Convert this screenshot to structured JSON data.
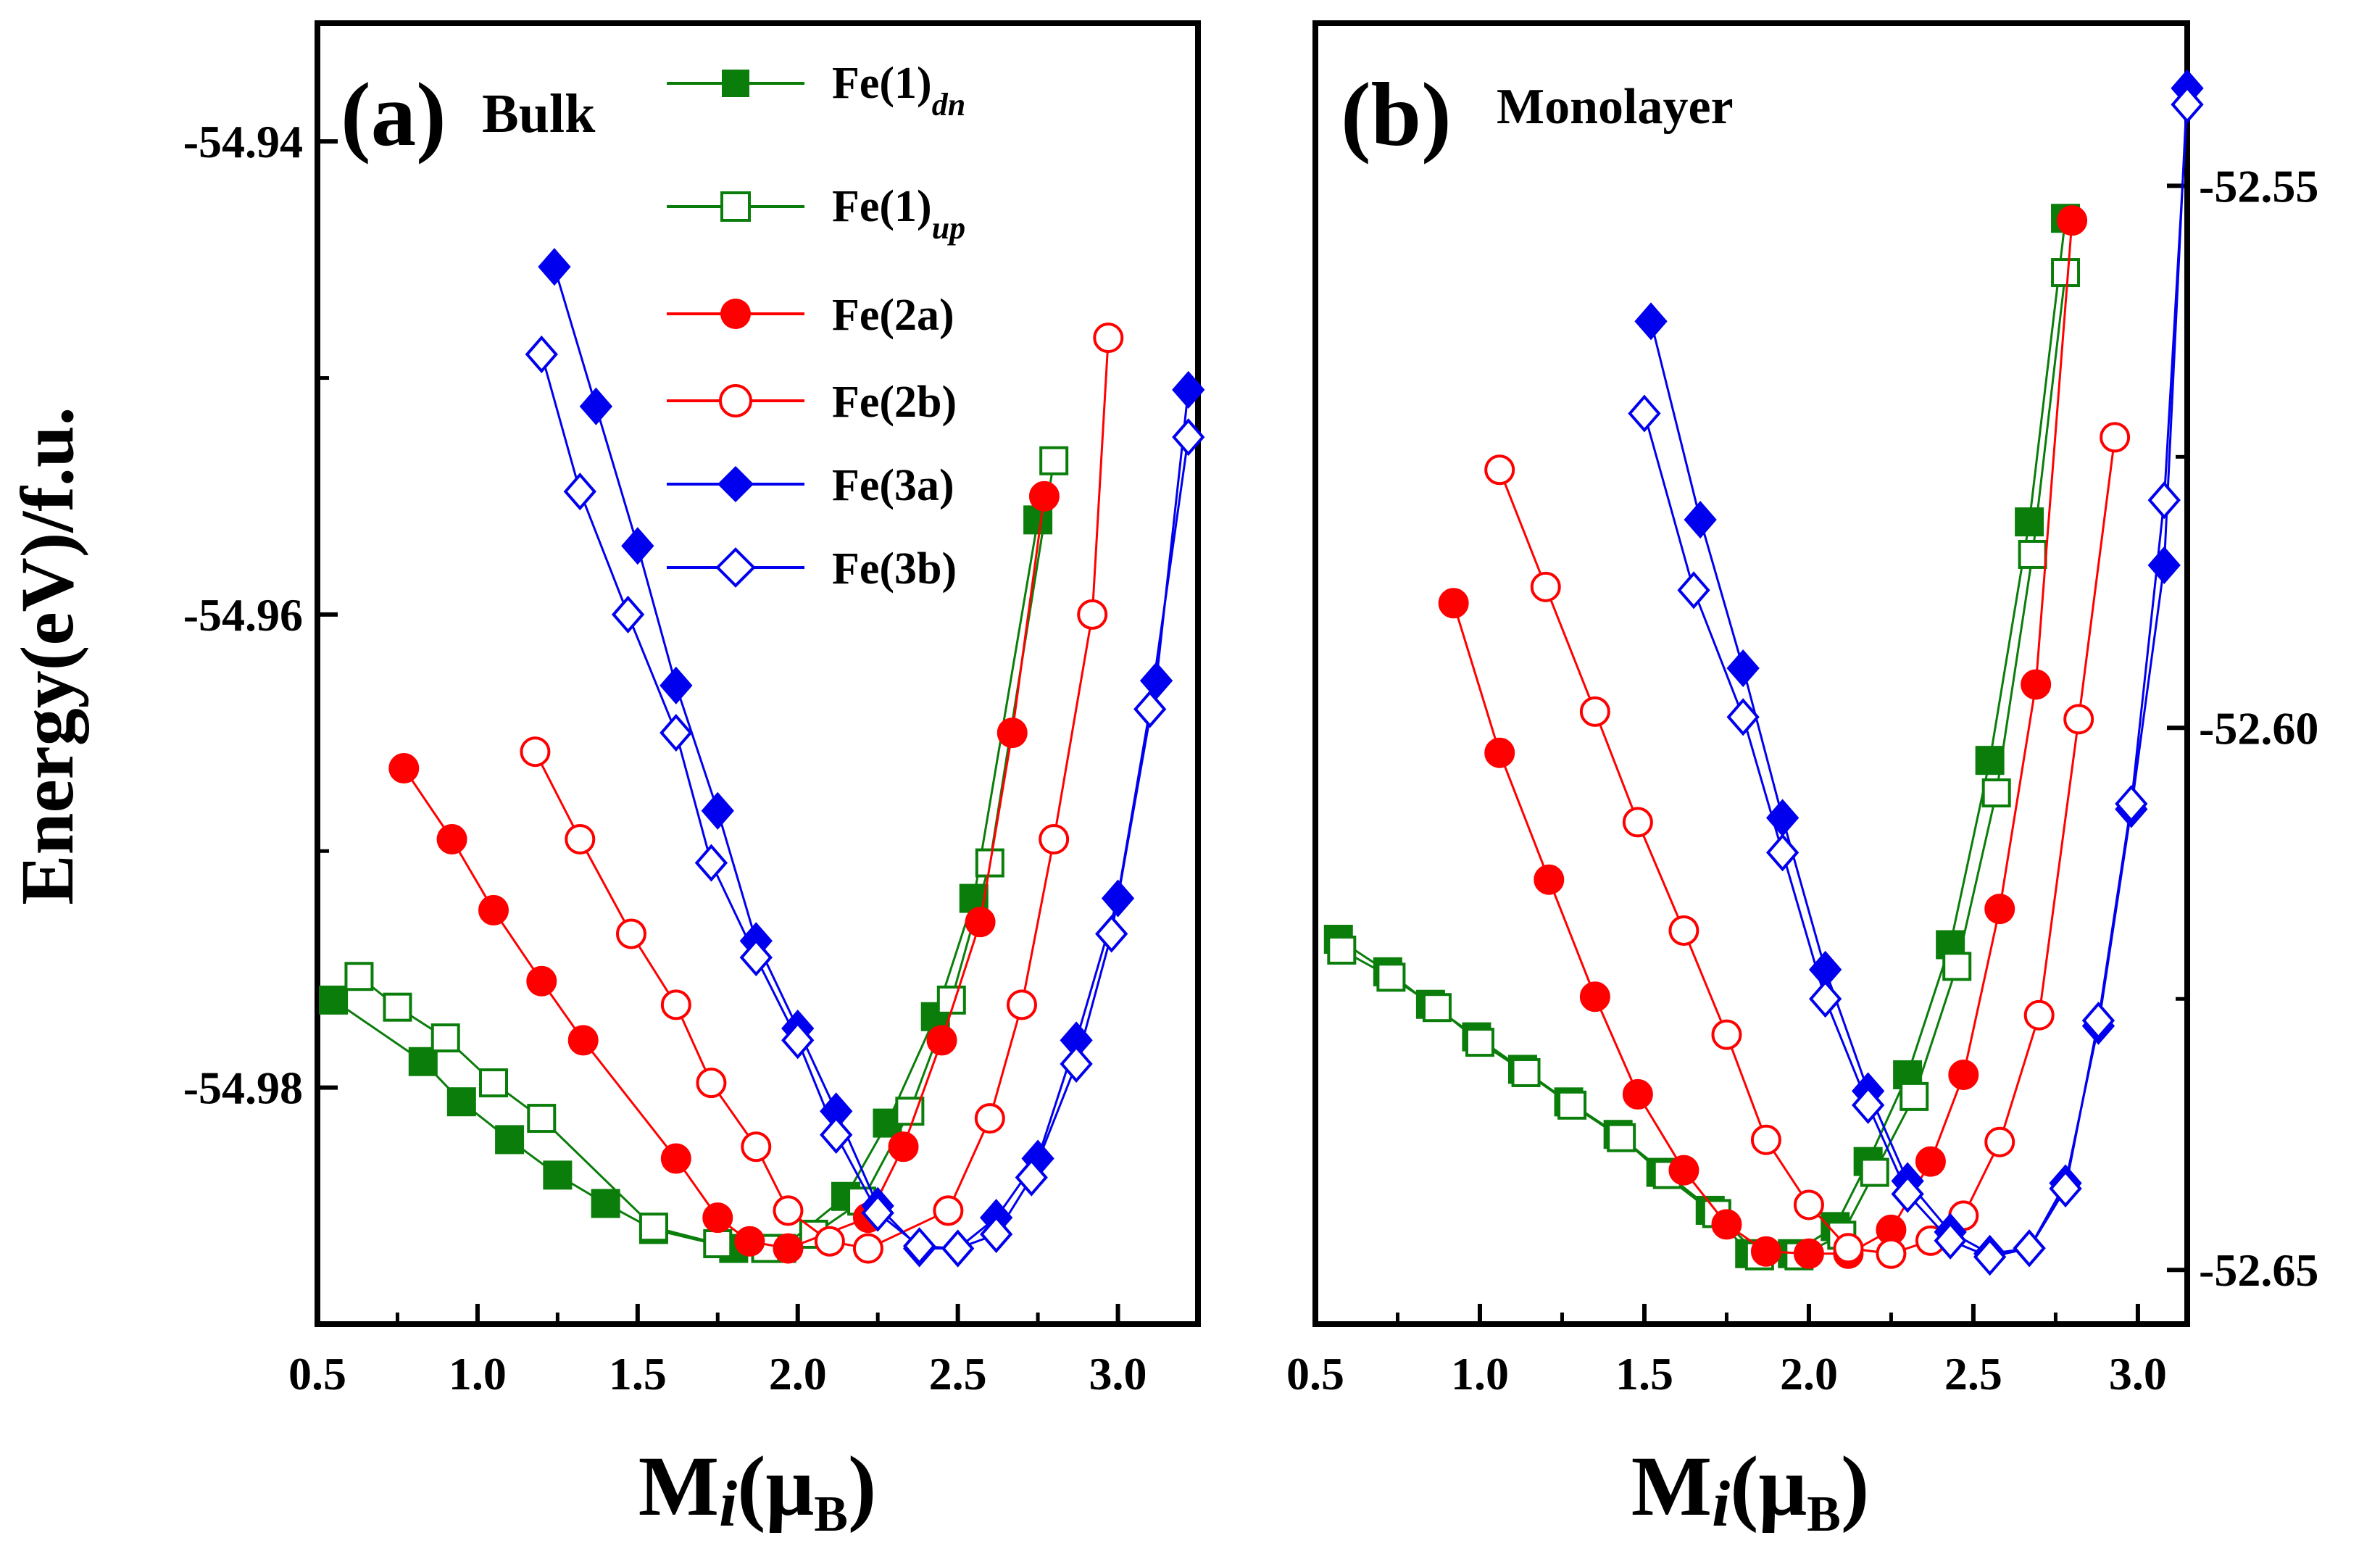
{
  "colors": {
    "green": "#0a7d0a",
    "red": "#ff0000",
    "blue": "#0000ee"
  },
  "legend": {
    "fe1dn": {
      "base": "Fe(1)",
      "sub": "dn"
    },
    "fe1up": {
      "base": "Fe(1)",
      "sub": "up"
    },
    "fe2a": "Fe(2a)",
    "fe2b": "Fe(2b)",
    "fe3a": "Fe(3a)",
    "fe3b": "Fe(3b)"
  },
  "ylabel": "Energy(eV)/f.u.",
  "xlabel": {
    "base": "M",
    "italic": "i",
    "open": "(μ",
    "sub": "B",
    "close": ")"
  },
  "chart_data": [
    {
      "type": "line",
      "panel": "(a)",
      "title": "Bulk",
      "xlim": [
        0.5,
        3.25
      ],
      "ylim": [
        -54.99,
        -54.935
      ],
      "xticks": [
        0.5,
        1.0,
        1.5,
        2.0,
        2.5,
        3.0
      ],
      "xtick_labels": [
        "0.5",
        "1.0",
        "1.5",
        "2.0",
        "2.5",
        "3.0"
      ],
      "yticks": [
        -54.98,
        -54.96,
        -54.94
      ],
      "ytick_labels": [
        "-54.98",
        "-54.96",
        "-54.94"
      ],
      "series": [
        {
          "name": "Fe(1)dn",
          "color": "green",
          "marker": "square",
          "filled": true,
          "x": [
            0.55,
            0.83,
            0.95,
            1.1,
            1.25,
            1.4,
            1.55,
            1.8,
            1.95,
            2.15,
            2.28,
            2.43,
            2.55,
            2.75
          ],
          "y": [
            -54.9763,
            -54.9789,
            -54.9806,
            -54.9822,
            -54.9837,
            -54.9849,
            -54.986,
            -54.9868,
            -54.9868,
            -54.9846,
            -54.9815,
            -54.977,
            -54.972,
            -54.956
          ]
        },
        {
          "name": "Fe(1)up",
          "color": "green",
          "marker": "square",
          "filled": false,
          "x": [
            0.63,
            0.75,
            0.9,
            1.05,
            1.2,
            1.55,
            1.75,
            1.9,
            2.05,
            2.2,
            2.35,
            2.48,
            2.6,
            2.8
          ],
          "y": [
            -54.9753,
            -54.9766,
            -54.9779,
            -54.9798,
            -54.9813,
            -54.9859,
            -54.9866,
            -54.9868,
            -54.9862,
            -54.9848,
            -54.981,
            -54.9763,
            -54.9705,
            -54.9535
          ]
        },
        {
          "name": "Fe(2a)",
          "color": "red",
          "marker": "circle",
          "filled": true,
          "x": [
            0.77,
            0.92,
            1.05,
            1.2,
            1.33,
            1.62,
            1.75,
            1.85,
            1.97,
            2.22,
            2.33,
            2.45,
            2.57,
            2.67,
            2.77
          ],
          "y": [
            -54.9665,
            -54.9695,
            -54.9725,
            -54.9755,
            -54.978,
            -54.983,
            -54.9855,
            -54.9865,
            -54.9868,
            -54.9855,
            -54.9825,
            -54.978,
            -54.973,
            -54.965,
            -54.955
          ]
        },
        {
          "name": "Fe(2b)",
          "color": "red",
          "marker": "circle",
          "filled": false,
          "x": [
            1.18,
            1.32,
            1.48,
            1.62,
            1.73,
            1.87,
            1.97,
            2.1,
            2.22,
            2.47,
            2.6,
            2.7,
            2.8,
            2.92,
            2.97
          ],
          "y": [
            -54.9658,
            -54.9695,
            -54.9735,
            -54.9765,
            -54.9798,
            -54.9825,
            -54.9852,
            -54.9865,
            -54.9868,
            -54.9852,
            -54.9813,
            -54.9765,
            -54.9695,
            -54.96,
            -54.9483
          ]
        },
        {
          "name": "Fe(3a)",
          "color": "blue",
          "marker": "diamond",
          "filled": true,
          "x": [
            1.24,
            1.37,
            1.5,
            1.62,
            1.75,
            1.87,
            2.0,
            2.12,
            2.25,
            2.38,
            2.5,
            2.62,
            2.75,
            2.87,
            3.0,
            3.12,
            3.22
          ],
          "y": [
            -54.9453,
            -54.9512,
            -54.9571,
            -54.963,
            -54.9683,
            -54.9738,
            -54.9775,
            -54.981,
            -54.985,
            -54.9868,
            -54.9868,
            -54.9855,
            -54.983,
            -54.978,
            -54.972,
            -54.9628,
            -54.9505
          ]
        },
        {
          "name": "Fe(3b)",
          "color": "blue",
          "marker": "diamond",
          "filled": false,
          "x": [
            1.2,
            1.32,
            1.47,
            1.62,
            1.73,
            1.87,
            2.0,
            2.12,
            2.25,
            2.38,
            2.5,
            2.62,
            2.73,
            2.87,
            2.98,
            3.1,
            3.22
          ],
          "y": [
            -54.949,
            -54.9548,
            -54.96,
            -54.965,
            -54.9705,
            -54.9745,
            -54.978,
            -54.982,
            -54.9853,
            -54.9867,
            -54.9868,
            -54.9862,
            -54.9838,
            -54.979,
            -54.9735,
            -54.964,
            -54.9525
          ]
        }
      ]
    },
    {
      "type": "line",
      "panel": "(b)",
      "title": "Monolayer",
      "xlim": [
        0.5,
        3.15
      ],
      "ylim": [
        -52.655,
        -52.535
      ],
      "xticks": [
        0.5,
        1.0,
        1.5,
        2.0,
        2.5,
        3.0
      ],
      "xtick_labels": [
        "0.5",
        "1.0",
        "1.5",
        "2.0",
        "2.5",
        "3.0"
      ],
      "yticks": [
        -52.65,
        -52.6,
        -52.55
      ],
      "ytick_labels": [
        "-52.65",
        "-52.60",
        "-52.55"
      ],
      "series": [
        {
          "name": "Fe(1)dn",
          "color": "green",
          "marker": "square",
          "filled": true,
          "x": [
            0.57,
            0.72,
            0.85,
            0.99,
            1.13,
            1.27,
            1.42,
            1.55,
            1.7,
            1.82,
            1.95,
            2.08,
            2.18,
            2.3,
            2.43,
            2.55,
            2.67,
            2.78
          ],
          "y": [
            -52.6195,
            -52.6225,
            -52.6255,
            -52.6285,
            -52.6315,
            -52.6345,
            -52.6375,
            -52.641,
            -52.6445,
            -52.6485,
            -52.6485,
            -52.646,
            -52.64,
            -52.632,
            -52.62,
            -52.603,
            -52.581,
            -52.553
          ]
        },
        {
          "name": "Fe(1)up",
          "color": "green",
          "marker": "square",
          "filled": false,
          "x": [
            0.58,
            0.73,
            0.87,
            1.0,
            1.14,
            1.28,
            1.43,
            1.57,
            1.72,
            1.85,
            1.97,
            2.1,
            2.2,
            2.32,
            2.45,
            2.57,
            2.68,
            2.78
          ],
          "y": [
            -52.6205,
            -52.623,
            -52.6258,
            -52.629,
            -52.6318,
            -52.6348,
            -52.6378,
            -52.6412,
            -52.6448,
            -52.6487,
            -52.6487,
            -52.6468,
            -52.641,
            -52.634,
            -52.622,
            -52.606,
            -52.584,
            -52.558
          ]
        },
        {
          "name": "Fe(2a)",
          "color": "red",
          "marker": "circle",
          "filled": true,
          "x": [
            0.92,
            1.06,
            1.21,
            1.35,
            1.48,
            1.62,
            1.75,
            1.87,
            2.0,
            2.12,
            2.25,
            2.37,
            2.47,
            2.58,
            2.69,
            2.8
          ],
          "y": [
            -52.5885,
            -52.6023,
            -52.614,
            -52.6248,
            -52.6338,
            -52.6408,
            -52.6458,
            -52.6483,
            -52.6485,
            -52.6485,
            -52.6463,
            -52.64,
            -52.632,
            -52.6167,
            -52.596,
            -52.5532
          ]
        },
        {
          "name": "Fe(2b)",
          "color": "red",
          "marker": "circle",
          "filled": false,
          "x": [
            1.06,
            1.2,
            1.35,
            1.48,
            1.62,
            1.75,
            1.87,
            2.0,
            2.12,
            2.25,
            2.37,
            2.47,
            2.58,
            2.7,
            2.82,
            2.93
          ],
          "y": [
            -52.5762,
            -52.587,
            -52.5985,
            -52.6087,
            -52.6187,
            -52.6283,
            -52.638,
            -52.644,
            -52.648,
            -52.6485,
            -52.6473,
            -52.645,
            -52.6382,
            -52.6265,
            -52.5992,
            -52.5732
          ]
        },
        {
          "name": "Fe(3a)",
          "color": "blue",
          "marker": "diamond",
          "filled": true,
          "x": [
            1.52,
            1.67,
            1.8,
            1.92,
            2.05,
            2.18,
            2.3,
            2.43,
            2.55,
            2.67,
            2.78,
            2.88,
            2.98,
            3.08,
            3.15
          ],
          "y": [
            -52.5625,
            -52.5808,
            -52.5945,
            -52.6083,
            -52.6223,
            -52.6335,
            -52.6418,
            -52.6465,
            -52.6485,
            -52.648,
            -52.642,
            -52.6275,
            -52.6075,
            -52.585,
            -52.541
          ]
        },
        {
          "name": "Fe(3b)",
          "color": "blue",
          "marker": "diamond",
          "filled": false,
          "x": [
            1.5,
            1.65,
            1.8,
            1.92,
            2.05,
            2.18,
            2.3,
            2.43,
            2.55,
            2.67,
            2.78,
            2.88,
            2.98,
            3.08,
            3.15
          ],
          "y": [
            -52.571,
            -52.5873,
            -52.599,
            -52.6115,
            -52.625,
            -52.6348,
            -52.643,
            -52.6473,
            -52.6488,
            -52.648,
            -52.6425,
            -52.627,
            -52.607,
            -52.579,
            -52.5425
          ]
        }
      ]
    }
  ]
}
